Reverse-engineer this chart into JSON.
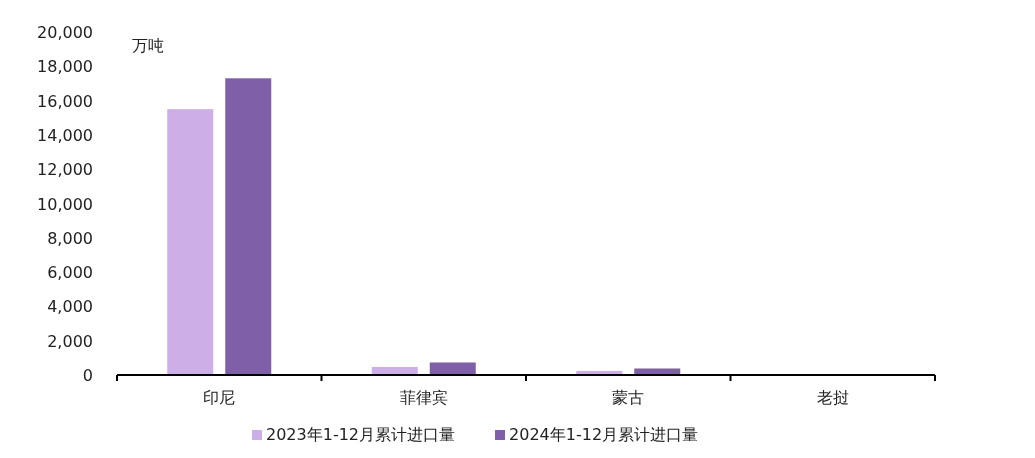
{
  "chart_data": {
    "type": "bar",
    "ylabel": "万吨",
    "categories": [
      "印尼",
      "菲律宾",
      "蒙古",
      "老挝"
    ],
    "series": [
      {
        "name": "2023年1-12月累计进口量",
        "color": "#cdaee6",
        "values": [
          15500,
          470,
          240,
          null
        ]
      },
      {
        "name": "2024年1-12月累计进口量",
        "color": "#7f5fa8",
        "values": [
          17300,
          730,
          380,
          null
        ]
      }
    ],
    "ylim": [
      0,
      20000
    ],
    "yticks": [
      {
        "value": 0,
        "label": "0"
      },
      {
        "value": 2000,
        "label": "2,000"
      },
      {
        "value": 4000,
        "label": "4,000"
      },
      {
        "value": 6000,
        "label": "6,000"
      },
      {
        "value": 8000,
        "label": "8,000"
      },
      {
        "value": 10000,
        "label": "10,000"
      },
      {
        "value": 12000,
        "label": "12,000"
      },
      {
        "value": 14000,
        "label": "14,000"
      },
      {
        "value": 16000,
        "label": "16,000"
      },
      {
        "value": 18000,
        "label": "18,000"
      },
      {
        "value": 20000,
        "label": "20,000"
      }
    ],
    "grid": false,
    "legend": "bottom"
  }
}
